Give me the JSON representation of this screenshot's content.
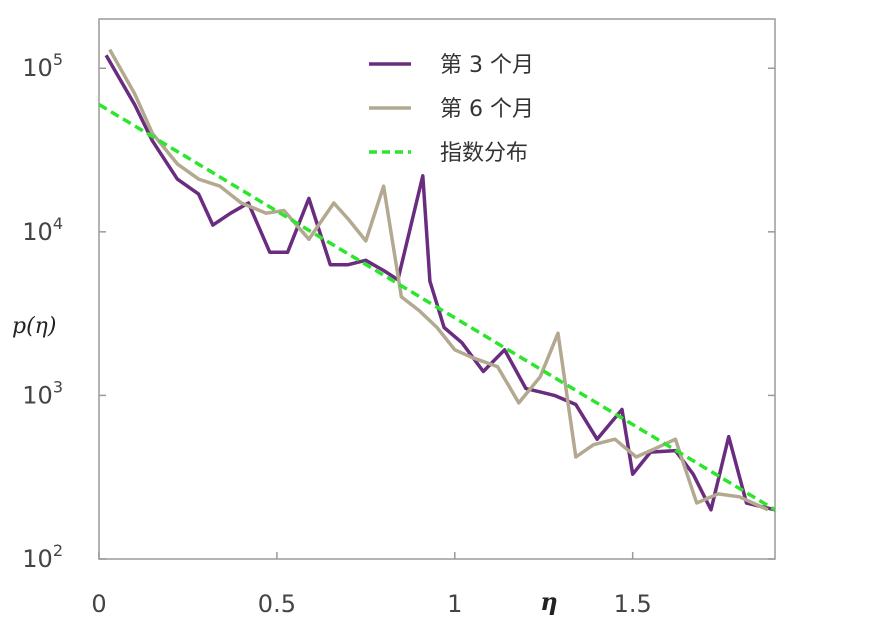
{
  "chart_data": {
    "type": "line",
    "title": "",
    "xlabel": "η",
    "ylabel": "p(η)",
    "xlim": [
      0,
      1.9
    ],
    "ylim": [
      100,
      200000
    ],
    "yscale": "log",
    "grid": false,
    "legend_position": "top-center",
    "x_ticks": [
      {
        "value": 0,
        "label": "0"
      },
      {
        "value": 0.5,
        "label": "0.5"
      },
      {
        "value": 1,
        "label": "1"
      },
      {
        "value": 1.5,
        "label": "1.5"
      }
    ],
    "y_ticks": [
      {
        "value": 100,
        "base": "10",
        "exp": "2"
      },
      {
        "value": 1000,
        "base": "10",
        "exp": "3"
      },
      {
        "value": 10000,
        "base": "10",
        "exp": "4"
      },
      {
        "value": 100000,
        "base": "10",
        "exp": "5"
      }
    ],
    "series": [
      {
        "name": "第 3 个月",
        "color": "#6a2c7e",
        "style": "solid",
        "x": [
          0.02,
          0.1,
          0.15,
          0.22,
          0.28,
          0.32,
          0.37,
          0.42,
          0.48,
          0.53,
          0.59,
          0.65,
          0.7,
          0.75,
          0.8,
          0.84,
          0.91,
          0.93,
          0.97,
          1.02,
          1.08,
          1.14,
          1.2,
          1.24,
          1.28,
          1.34,
          1.4,
          1.47,
          1.5,
          1.55,
          1.62,
          1.67,
          1.72,
          1.77,
          1.82,
          1.9
        ],
        "y": [
          120000,
          60000,
          36000,
          21000,
          17000,
          11000,
          13000,
          15000,
          7500,
          7500,
          16000,
          6300,
          6300,
          6700,
          5800,
          5100,
          22000,
          5000,
          2600,
          2100,
          1400,
          1900,
          1100,
          1050,
          1000,
          880,
          540,
          820,
          330,
          450,
          460,
          330,
          200,
          560,
          220,
          200
        ]
      },
      {
        "name": "第 6 个月",
        "color": "#b3a991",
        "style": "solid",
        "x": [
          0.03,
          0.1,
          0.15,
          0.22,
          0.28,
          0.34,
          0.4,
          0.47,
          0.52,
          0.59,
          0.66,
          0.7,
          0.75,
          0.8,
          0.85,
          0.9,
          0.95,
          1.0,
          1.05,
          1.12,
          1.18,
          1.24,
          1.29,
          1.34,
          1.39,
          1.45,
          1.51,
          1.56,
          1.62,
          1.68,
          1.74,
          1.8,
          1.88
        ],
        "y": [
          130000,
          70000,
          40000,
          26000,
          21000,
          19000,
          15000,
          13000,
          13500,
          9000,
          15000,
          12000,
          8800,
          19000,
          4000,
          3300,
          2600,
          1900,
          1700,
          1500,
          900,
          1300,
          2400,
          420,
          500,
          540,
          420,
          470,
          540,
          220,
          250,
          240,
          200
        ]
      },
      {
        "name": "指数分布",
        "color": "#2ee52e",
        "style": "dashed",
        "x": [
          0,
          1.9
        ],
        "y": [
          60000,
          200
        ]
      }
    ]
  }
}
